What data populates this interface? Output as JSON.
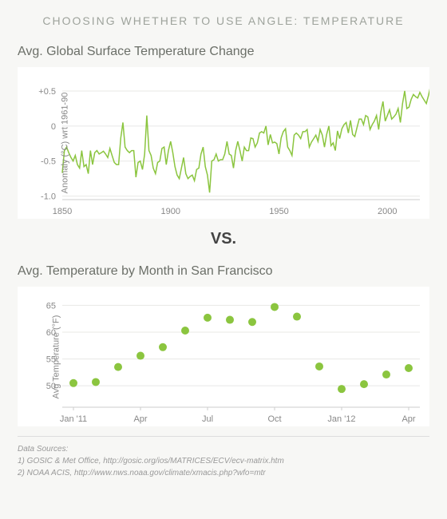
{
  "main_title": "CHOOSING WHETHER TO USE ANGLE: TEMPERATURE",
  "vs_text": "VS.",
  "chart1": {
    "type": "line",
    "title": "Avg. Global Surface Temperature Change",
    "ylabel": "Anomaly (°C) wrt 1961-90",
    "line_color": "#8bc53f",
    "background_color": "#ffffff",
    "grid_color": "#e8e8e6",
    "xlim": [
      1850,
      2015
    ],
    "ylim": [
      -1.05,
      0.75
    ],
    "yticks": [
      -1.0,
      -0.5,
      0,
      0.5
    ],
    "ytick_labels": [
      "-1.0",
      "-0.5",
      "0",
      "+0.5"
    ],
    "xticks": [
      1850,
      1900,
      1950,
      2000
    ],
    "xtick_labels": [
      "1850",
      "1900",
      "1950",
      "2000"
    ],
    "values": [
      -0.67,
      -0.35,
      -0.3,
      -0.38,
      -0.45,
      -0.5,
      -0.42,
      -0.55,
      -0.6,
      -0.35,
      -0.58,
      -0.55,
      -0.68,
      -0.35,
      -0.55,
      -0.38,
      -0.35,
      -0.4,
      -0.38,
      -0.36,
      -0.4,
      -0.45,
      -0.32,
      -0.42,
      -0.52,
      -0.55,
      -0.55,
      -0.17,
      0.05,
      -0.3,
      -0.35,
      -0.38,
      -0.35,
      -0.35,
      -0.73,
      -0.52,
      -0.5,
      -0.62,
      -0.4,
      0.15,
      -0.35,
      -0.42,
      -0.6,
      -0.68,
      -0.52,
      -0.5,
      -0.32,
      -0.3,
      -0.55,
      -0.35,
      -0.22,
      -0.38,
      -0.58,
      -0.7,
      -0.75,
      -0.6,
      -0.45,
      -0.68,
      -0.75,
      -0.72,
      -0.7,
      -0.78,
      -0.62,
      -0.6,
      -0.4,
      -0.3,
      -0.58,
      -0.7,
      -0.95,
      -0.5,
      -0.48,
      -0.4,
      -0.5,
      -0.48,
      -0.48,
      -0.4,
      -0.22,
      -0.4,
      -0.42,
      -0.6,
      -0.35,
      -0.22,
      -0.35,
      -0.5,
      -0.3,
      -0.35,
      -0.35,
      -0.17,
      -0.18,
      -0.3,
      -0.24,
      -0.1,
      -0.08,
      -0.1,
      -0.0,
      -0.27,
      -0.12,
      -0.24,
      -0.23,
      -0.25,
      -0.4,
      -0.17,
      -0.08,
      -0.04,
      -0.3,
      -0.35,
      -0.42,
      -0.13,
      -0.1,
      -0.13,
      -0.18,
      -0.08,
      -0.08,
      -0.05,
      -0.3,
      -0.23,
      -0.18,
      -0.13,
      -0.22,
      -0.05,
      -0.13,
      -0.3,
      -0.12,
      -0.0,
      -0.28,
      -0.24,
      -0.35,
      -0.07,
      -0.18,
      -0.04,
      0.02,
      0.05,
      -0.1,
      0.08,
      -0.12,
      -0.15,
      -0.02,
      0.1,
      0.1,
      0.02,
      0.15,
      0.13,
      -0.05,
      0.02,
      0.07,
      0.15,
      -0.05,
      0.2,
      0.35,
      0.07,
      0.15,
      0.23,
      0.1,
      0.13,
      0.17,
      0.25,
      0.05,
      0.32,
      0.5,
      0.25,
      0.27,
      0.38,
      0.45,
      0.42,
      0.4,
      0.48,
      0.42,
      0.37,
      0.32,
      0.44,
      0.58,
      0.4,
      0.2,
      0.27,
      0.2,
      0.25
    ]
  },
  "chart2": {
    "type": "scatter",
    "title": "Avg. Temperature by Month in San Francisco",
    "ylabel": "Avg Temperature (°F)",
    "marker_color": "#8bc53f",
    "marker_radius": 5,
    "background_color": "#ffffff",
    "grid_color": "#e8e8e6",
    "ylim": [
      46,
      67
    ],
    "yticks": [
      50,
      55,
      60,
      65
    ],
    "ytick_labels": [
      "50",
      "55",
      "60",
      "65"
    ],
    "xticks": [
      0,
      3,
      6,
      9,
      12,
      15
    ],
    "xtick_labels": [
      "Jan '11",
      "Apr",
      "Jul",
      "Oct",
      "Jan '12",
      "Apr"
    ],
    "x_values": [
      0,
      1,
      2,
      3,
      4,
      5,
      6,
      7,
      8,
      9,
      10,
      11,
      12,
      13,
      14,
      15
    ],
    "y_values": [
      50.5,
      50.7,
      53.5,
      55.6,
      57.2,
      60.3,
      62.7,
      62.3,
      61.9,
      64.7,
      62.9,
      53.6,
      49.4,
      50.3,
      52.1,
      53.3
    ]
  },
  "sources": {
    "title": "Data Sources:",
    "line1": "1) GOSIC & Met Office, http://gosic.org/ios/MATRICES/ECV/ecv-matrix.htm",
    "line2": "2) NOAA ACIS, http://www.nws.noaa.gov/climate/xmacis.php?wfo=mtr"
  }
}
